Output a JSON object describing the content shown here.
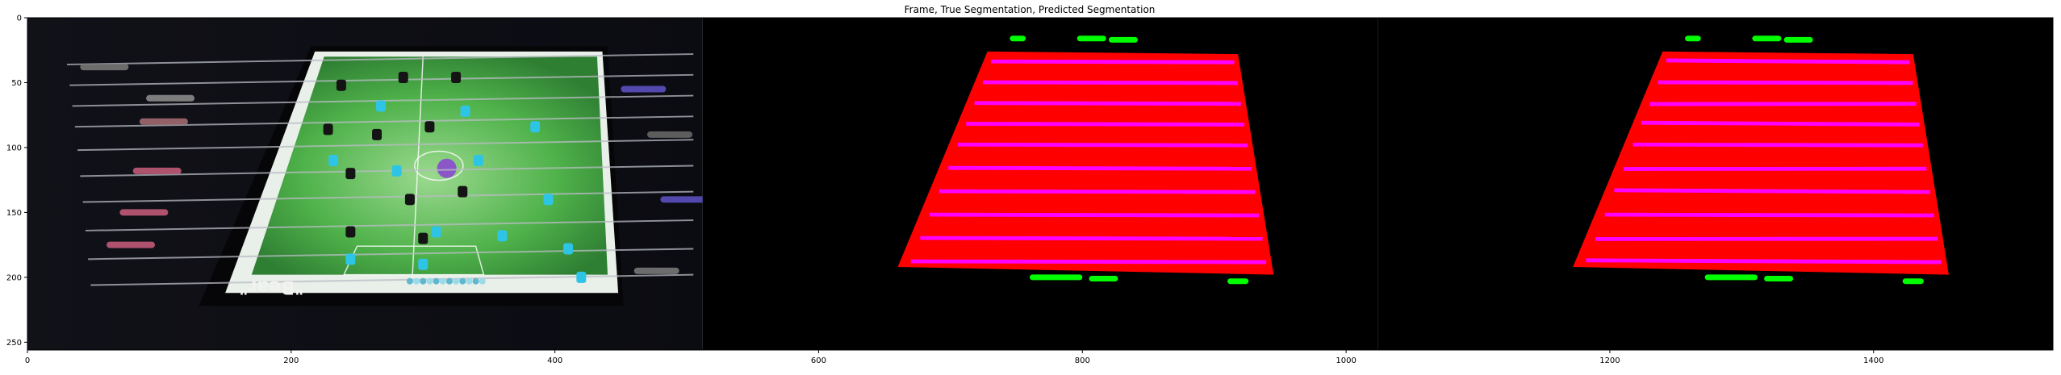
{
  "chart_data": {
    "type": "image",
    "title": "Frame, True Segmentation, Predicted Segmentation",
    "panels": [
      "Frame",
      "True Segmentation",
      "Predicted Segmentation"
    ],
    "xlim": [
      0,
      1536
    ],
    "ylim": [
      256,
      0
    ],
    "xticks": [
      0,
      200,
      400,
      600,
      800,
      1000,
      1200,
      1400
    ],
    "yticks": [
      0,
      50,
      100,
      150,
      200,
      250
    ],
    "panel_x_ranges": [
      [
        0,
        512
      ],
      [
        512,
        1024
      ],
      [
        1024,
        1536
      ]
    ],
    "segmentation_classes": [
      {
        "name": "playfield",
        "color": "#ff0000"
      },
      {
        "name": "rods",
        "color": "#ff00ff"
      },
      {
        "name": "handles",
        "color": "#00ff00"
      }
    ],
    "frame_text": {
      "table_brand": "\"Bear\""
    },
    "colors": {
      "playfield": "#ff0000",
      "rods": "#ff00ff",
      "handles": "#00ff00",
      "field_green": "#4caf50",
      "player_cyan": "#2ec4e6",
      "background": "#000000"
    }
  }
}
